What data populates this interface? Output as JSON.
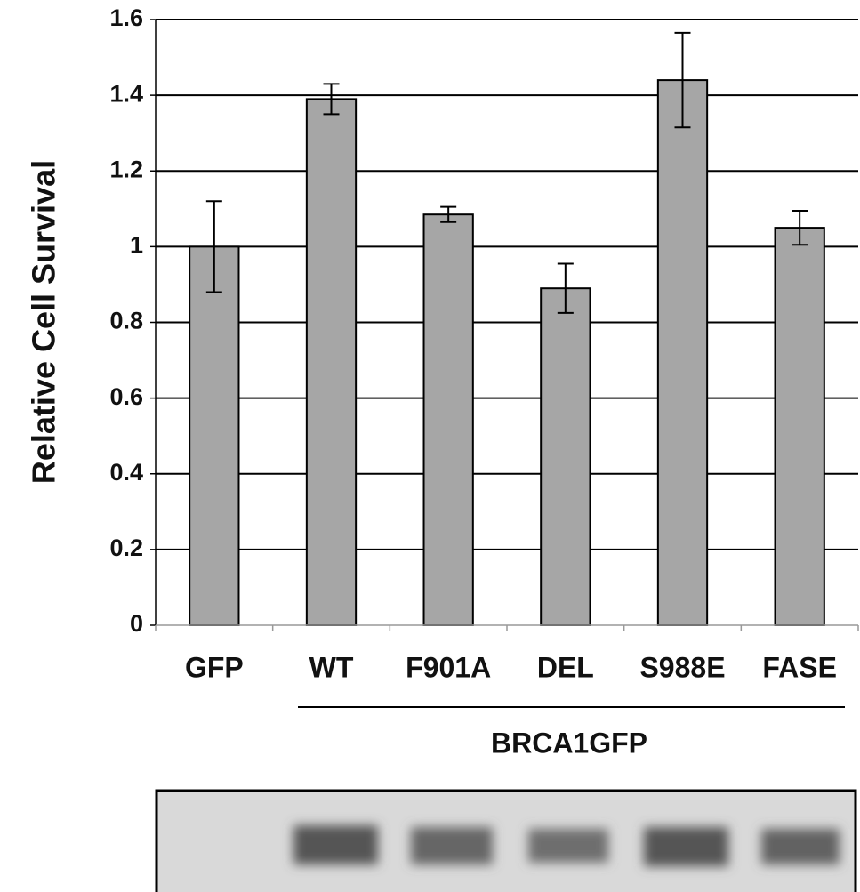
{
  "chart_data": {
    "type": "bar",
    "ylabel": "Relative Cell Survival",
    "categories": [
      "GFP",
      "WT",
      "F901A",
      "DEL",
      "S988E",
      "FASE"
    ],
    "values": [
      1.0,
      1.39,
      1.085,
      0.89,
      1.44,
      1.05
    ],
    "errors": [
      0.12,
      0.04,
      0.02,
      0.065,
      0.125,
      0.045
    ],
    "color": "#a6a6a6",
    "ylim": [
      0,
      1.6
    ],
    "yticks": [
      0,
      0.2,
      0.4,
      0.6,
      0.8,
      1,
      1.2,
      1.4,
      1.6
    ],
    "grid": true,
    "group_label": "BRCA1GFP"
  }
}
